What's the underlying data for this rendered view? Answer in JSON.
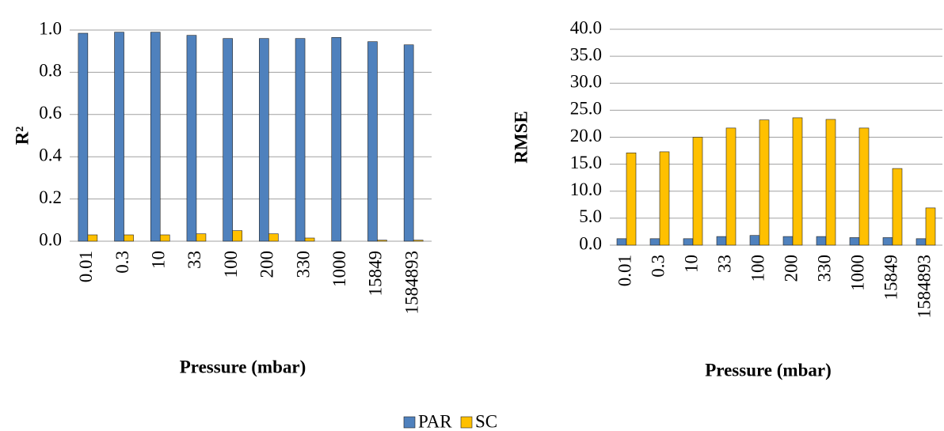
{
  "chart_data": [
    {
      "type": "bar",
      "y_label": "R²",
      "x_label": "Pressure (mbar)",
      "categories": [
        "0.01",
        "0.3",
        "10",
        "33",
        "100",
        "200",
        "330",
        "1000",
        "15849",
        "1584893"
      ],
      "series": [
        {
          "name": "PAR",
          "color": "#4f81bd",
          "values": [
            0.985,
            0.99,
            0.99,
            0.975,
            0.96,
            0.96,
            0.96,
            0.965,
            0.945,
            0.93
          ]
        },
        {
          "name": "SC",
          "color": "#ffc000",
          "values": [
            0.03,
            0.03,
            0.03,
            0.035,
            0.05,
            0.035,
            0.015,
            0,
            0.005,
            0.005
          ]
        }
      ],
      "ylim": [
        0,
        1
      ],
      "yticks": [
        {
          "value": 0,
          "label": "0.0"
        },
        {
          "value": 0.2,
          "label": "0.2"
        },
        {
          "value": 0.4,
          "label": "0.4"
        },
        {
          "value": 0.6,
          "label": "0.6"
        },
        {
          "value": 0.8,
          "label": "0.8"
        },
        {
          "value": 1,
          "label": "1.0"
        }
      ],
      "grid": true
    },
    {
      "type": "bar",
      "y_label": "RMSE",
      "x_label": "Pressure (mbar)",
      "categories": [
        "0.01",
        "0.3",
        "10",
        "33",
        "100",
        "200",
        "330",
        "1000",
        "15849",
        "1584893"
      ],
      "series": [
        {
          "color": "#4f81bd",
          "values": [
            1.2,
            1.2,
            1.2,
            1.6,
            1.8,
            1.6,
            1.6,
            1.4,
            1.4,
            1.2
          ]
        },
        {
          "color": "#ffc000",
          "values": [
            17.1,
            17.3,
            20,
            21.7,
            23.2,
            23.6,
            23.3,
            21.7,
            14.2,
            6.9
          ]
        }
      ],
      "ylim": [
        0,
        40
      ],
      "yticks": [
        {
          "value": 0,
          "label": "0.0"
        },
        {
          "value": 5,
          "label": "5.0"
        },
        {
          "value": 10,
          "label": "10.0"
        },
        {
          "value": 15,
          "label": "15.0"
        },
        {
          "value": 20,
          "label": "20.0"
        },
        {
          "value": 25,
          "label": "25.0"
        },
        {
          "value": 30,
          "label": "30.0"
        },
        {
          "value": 35,
          "label": "35.0"
        },
        {
          "value": 40,
          "label": "40.0"
        }
      ],
      "grid": true
    }
  ]
}
